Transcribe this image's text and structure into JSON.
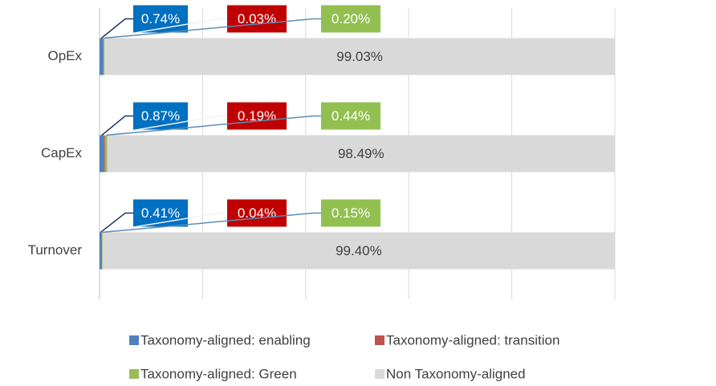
{
  "chart_data": {
    "type": "stacked_barh",
    "categories": [
      "OpEx",
      "CapEx",
      "Turnover"
    ],
    "series": [
      {
        "name": "Taxonomy-aligned: enabling",
        "color": "#4f81bd",
        "box_color": "#0070c0",
        "values": [
          0.74,
          0.87,
          0.41
        ],
        "value_labels": [
          "0.74%",
          "0.87%",
          "0.41%"
        ]
      },
      {
        "name": "Taxonomy-aligned: transition",
        "color": "#c0504d",
        "box_color": "#c00000",
        "values": [
          0.03,
          0.19,
          0.04
        ],
        "value_labels": [
          "0.03%",
          "0.19%",
          "0.04%"
        ]
      },
      {
        "name": "Taxonomy-aligned: Green",
        "color": "#9bbb59",
        "box_color": "#92c050",
        "values": [
          0.2,
          0.44,
          0.15
        ],
        "value_labels": [
          "0.20%",
          "0.44%",
          "0.15%"
        ]
      },
      {
        "name": "Non Taxonomy-aligned",
        "color": "#d9d9d9",
        "values": [
          99.03,
          98.49,
          99.4
        ],
        "value_labels": [
          "99.03%",
          "98.49%",
          "99.40%"
        ]
      }
    ],
    "xlim": [
      0,
      100
    ],
    "xticks": [
      0,
      20,
      40,
      60,
      80,
      100
    ],
    "grid": true
  }
}
